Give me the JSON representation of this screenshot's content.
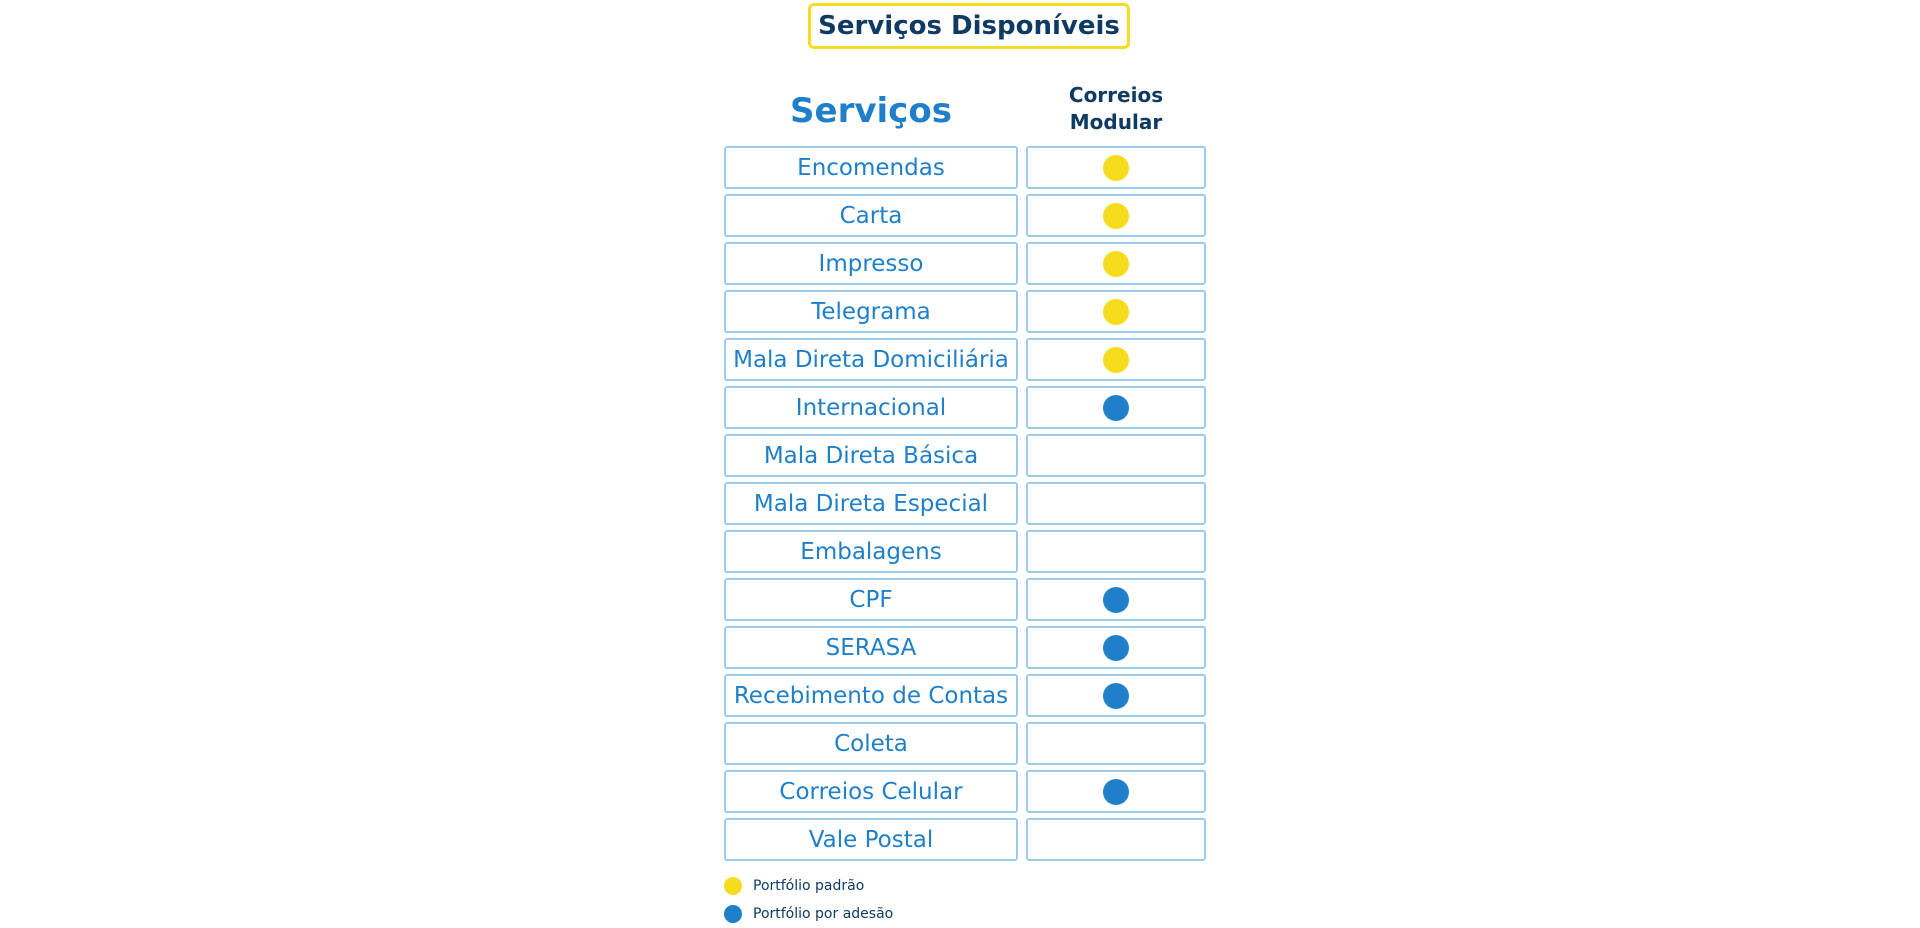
{
  "title": "Serviços Disponíveis",
  "columns": {
    "services": "Serviços",
    "modular": "Correios\nModular"
  },
  "colors": {
    "padrao": "#f5dc1e",
    "adesao": "#1f7fc8"
  },
  "rows": [
    {
      "name": "Encomendas",
      "mark": "padrao"
    },
    {
      "name": "Carta",
      "mark": "padrao"
    },
    {
      "name": "Impresso",
      "mark": "padrao"
    },
    {
      "name": "Telegrama",
      "mark": "padrao"
    },
    {
      "name": "Mala Direta Domiciliária",
      "mark": "padrao"
    },
    {
      "name": "Internacional",
      "mark": "adesao"
    },
    {
      "name": "Mala Direta Básica",
      "mark": ""
    },
    {
      "name": "Mala Direta Especial",
      "mark": ""
    },
    {
      "name": "Embalagens",
      "mark": ""
    },
    {
      "name": "CPF",
      "mark": "adesao"
    },
    {
      "name": "SERASA",
      "mark": "adesao"
    },
    {
      "name": "Recebimento de Contas",
      "mark": "adesao"
    },
    {
      "name": "Coleta",
      "mark": ""
    },
    {
      "name": "Correios Celular",
      "mark": "adesao"
    },
    {
      "name": "Vale Postal",
      "mark": ""
    }
  ],
  "legend": [
    {
      "key": "padrao",
      "label": "Portfólio padrão"
    },
    {
      "key": "adesao",
      "label": "Portfólio por adesão"
    }
  ]
}
